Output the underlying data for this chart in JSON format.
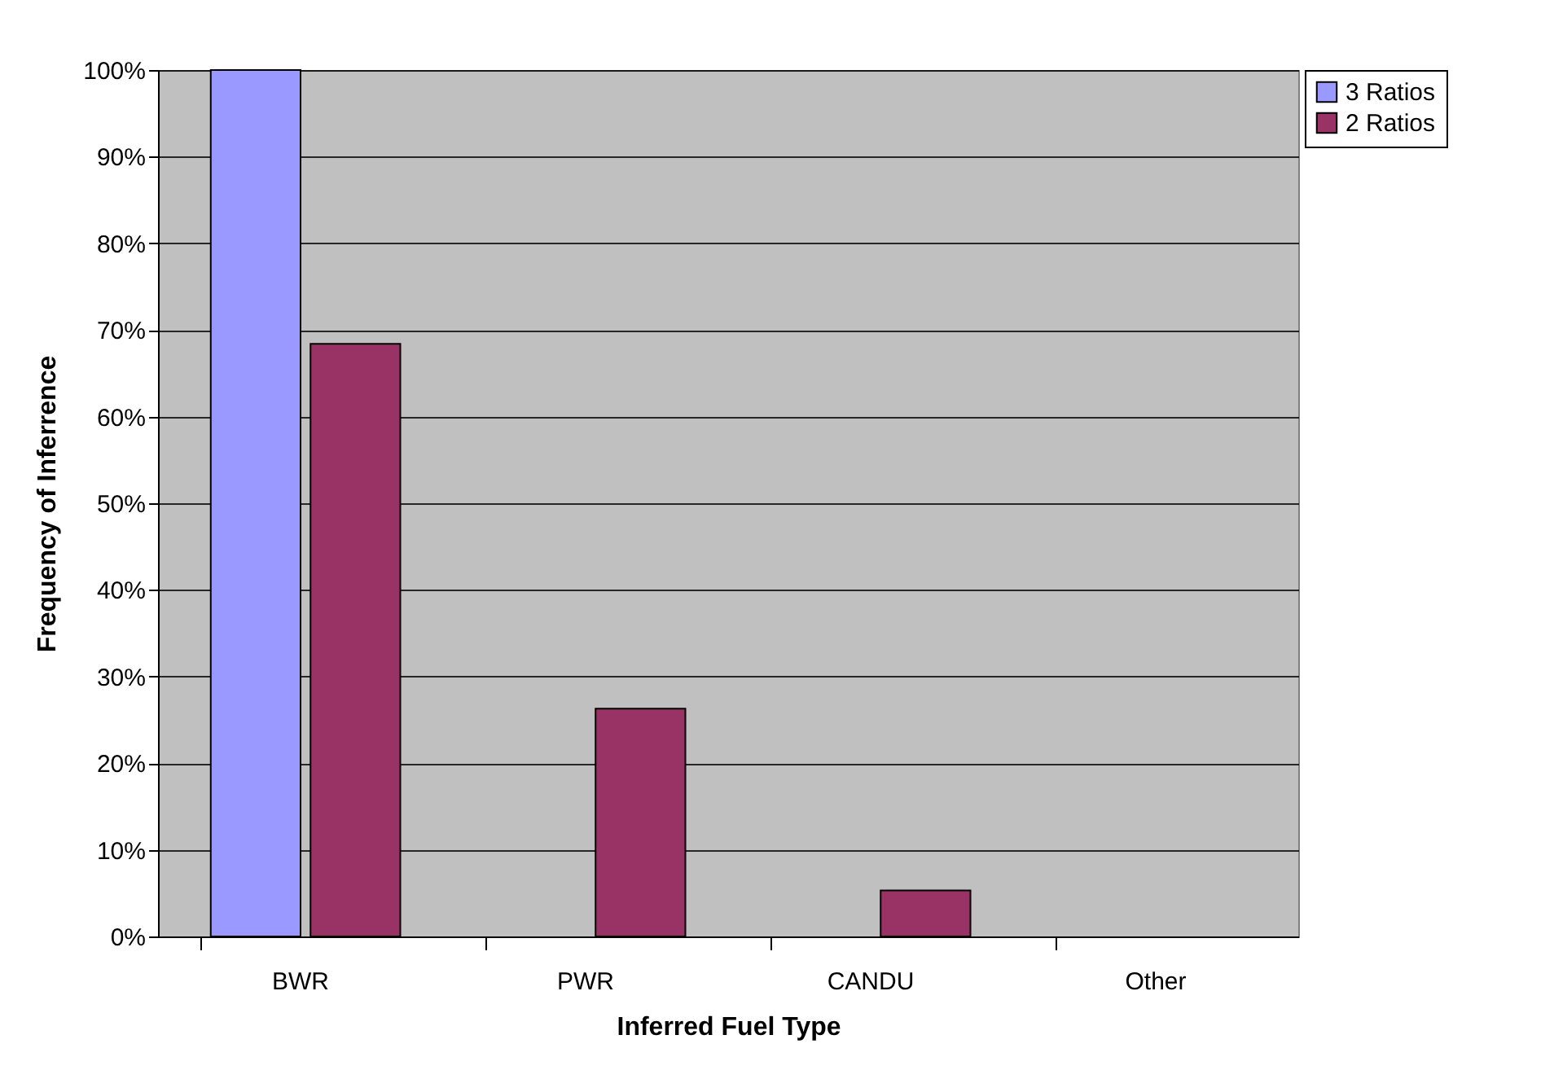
{
  "chart_data": {
    "type": "bar",
    "xlabel": "Inferred Fuel Type",
    "ylabel": "Frequency of Inferrence",
    "categories": [
      "BWR",
      "PWR",
      "CANDU",
      "Other"
    ],
    "series": [
      {
        "name": "3 Ratios",
        "color": "#9999ff",
        "values": [
          100,
          null,
          null,
          null
        ]
      },
      {
        "name": "2 Ratios",
        "color": "#993366",
        "values": [
          68.4,
          26.3,
          5.3,
          null
        ]
      }
    ],
    "ylim": [
      0,
      100
    ],
    "yticks": [
      {
        "value": 0,
        "label": "0%"
      },
      {
        "value": 10,
        "label": "10%"
      },
      {
        "value": 20,
        "label": "20%"
      },
      {
        "value": 30,
        "label": "30%"
      },
      {
        "value": 40,
        "label": "40%"
      },
      {
        "value": 50,
        "label": "50%"
      },
      {
        "value": 60,
        "label": "60%"
      },
      {
        "value": 70,
        "label": "70%"
      },
      {
        "value": 80,
        "label": "80%"
      },
      {
        "value": 90,
        "label": "90%"
      },
      {
        "value": 100,
        "label": "100%"
      }
    ],
    "grid": "y",
    "legend": "right"
  }
}
